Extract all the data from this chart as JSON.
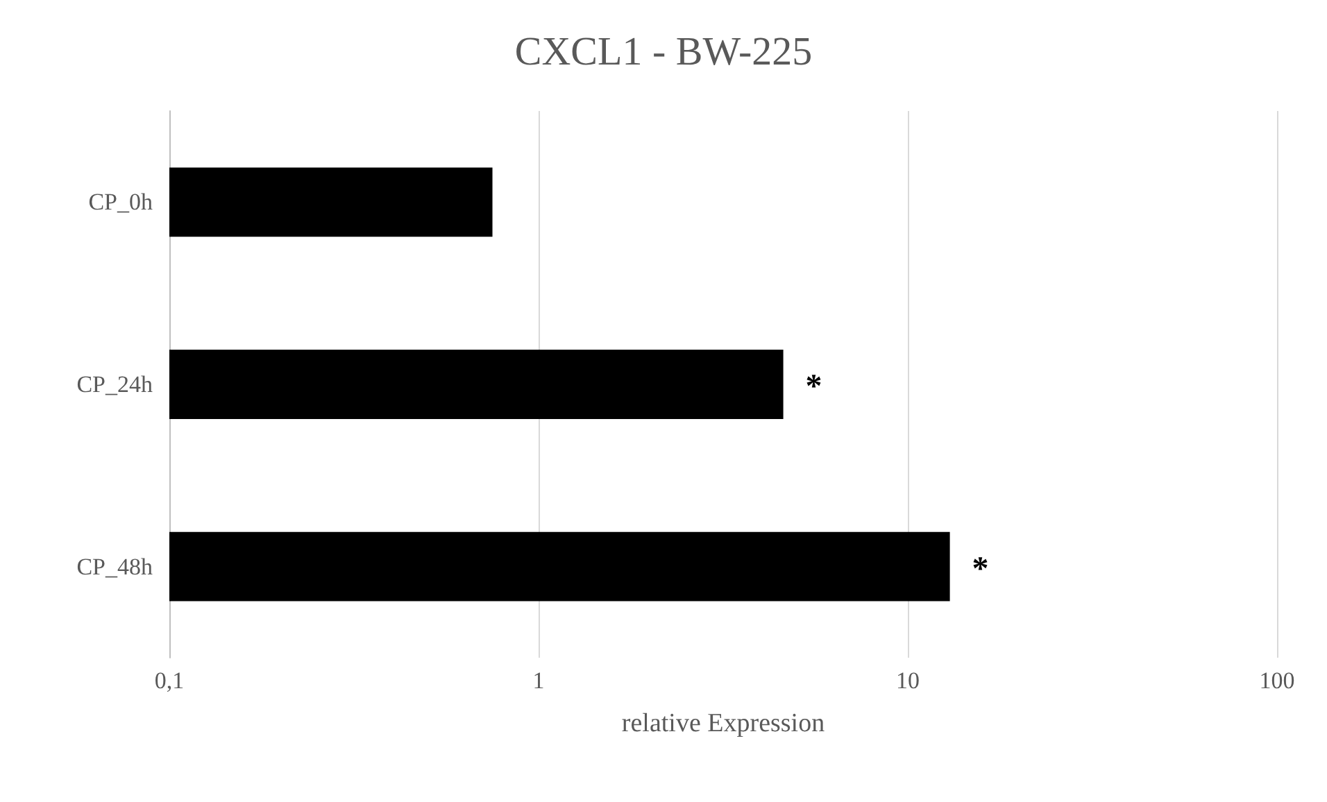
{
  "chart_data": {
    "type": "bar",
    "orientation": "horizontal",
    "title": "CXCL1 - BW-225",
    "xlabel": "relative Expression",
    "categories": [
      "CP_0h",
      "CP_24h",
      "CP_48h"
    ],
    "values": [
      0.75,
      4.6,
      13
    ],
    "color": "#000000",
    "log": "x",
    "xlim": [
      0.1,
      100
    ],
    "xticks": [
      {
        "value": 0.1,
        "label": "0,1"
      },
      1,
      10,
      100
    ],
    "grid": "x",
    "annotations": [
      {
        "text": "*",
        "x": 4.6,
        "y": "CP_24h"
      },
      {
        "text": "*",
        "x": 13,
        "y": "CP_48h"
      }
    ]
  }
}
